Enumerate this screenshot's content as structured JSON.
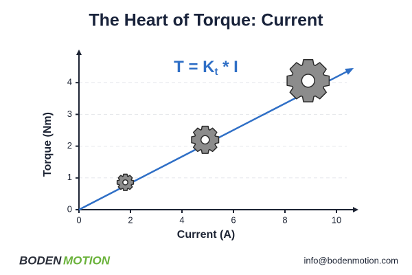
{
  "chart_data": {
    "type": "line",
    "title": "The Heart of Torque: Current",
    "formula": {
      "main": "T = K",
      "subscript": "t",
      "rest": " * I"
    },
    "x_label": "Current (A)",
    "y_label": "Torque (Nm)",
    "x": [
      0,
      10.6
    ],
    "values": [
      0,
      4.43
    ],
    "color": "#2f6fc6",
    "markers": {
      "x": [
        1.8,
        4.9,
        8.9
      ],
      "values": [
        0.86,
        2.2,
        4.06
      ],
      "color": "#8c8c8c"
    },
    "xlim": [
      0,
      10.8
    ],
    "ylim": [
      0,
      5
    ],
    "xticks": [
      0,
      2,
      4,
      6,
      8,
      10
    ],
    "yticks": [
      0,
      1,
      2,
      3,
      4
    ],
    "grid": true
  },
  "footer": {
    "logo_left": "BODEN",
    "logo_right": "MOTION",
    "email": "info@bodenmotion.com"
  }
}
